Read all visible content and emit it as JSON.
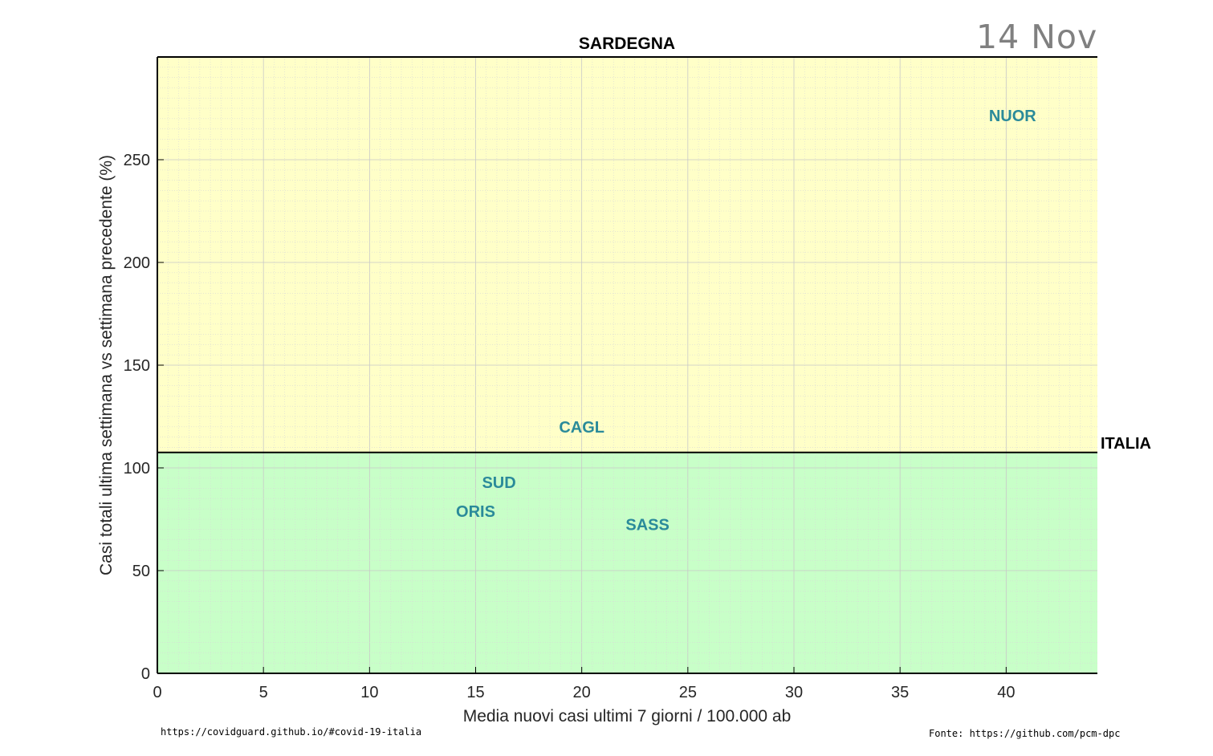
{
  "date_label": "14 Nov",
  "footer": {
    "left": "https://covidguard.github.io/#covid-19-italia",
    "right": "Fonte: https://github.com/pcm-dpc"
  },
  "colors": {
    "upper_zone": "#ffffc8",
    "lower_zone": "#c8ffc8",
    "point_label": "#2a8a9a",
    "reference_line": "#000000"
  },
  "chart_data": {
    "type": "scatter",
    "title": "SARDEGNA",
    "xlabel": "Media nuovi casi ultimi 7 giorni / 100.000 ab",
    "ylabel": "Casi totali ultima settimana vs settimana precedente (%)",
    "xlim": [
      0,
      44.3
    ],
    "ylim": [
      0,
      300
    ],
    "xticks": [
      0,
      5,
      10,
      15,
      20,
      25,
      30,
      35,
      40
    ],
    "yticks": [
      0,
      50,
      100,
      150,
      200,
      250
    ],
    "grid": true,
    "reference_line": {
      "label": "ITALIA",
      "y": 107.5
    },
    "points": [
      {
        "label": "NUOR",
        "x": 40.3,
        "y": 271.5
      },
      {
        "label": "CAGL",
        "x": 20.0,
        "y": 120.0
      },
      {
        "label": "SUD",
        "x": 16.1,
        "y": 93.0
      },
      {
        "label": "ORIS",
        "x": 15.0,
        "y": 79.0
      },
      {
        "label": "SASS",
        "x": 23.1,
        "y": 72.5
      }
    ]
  }
}
